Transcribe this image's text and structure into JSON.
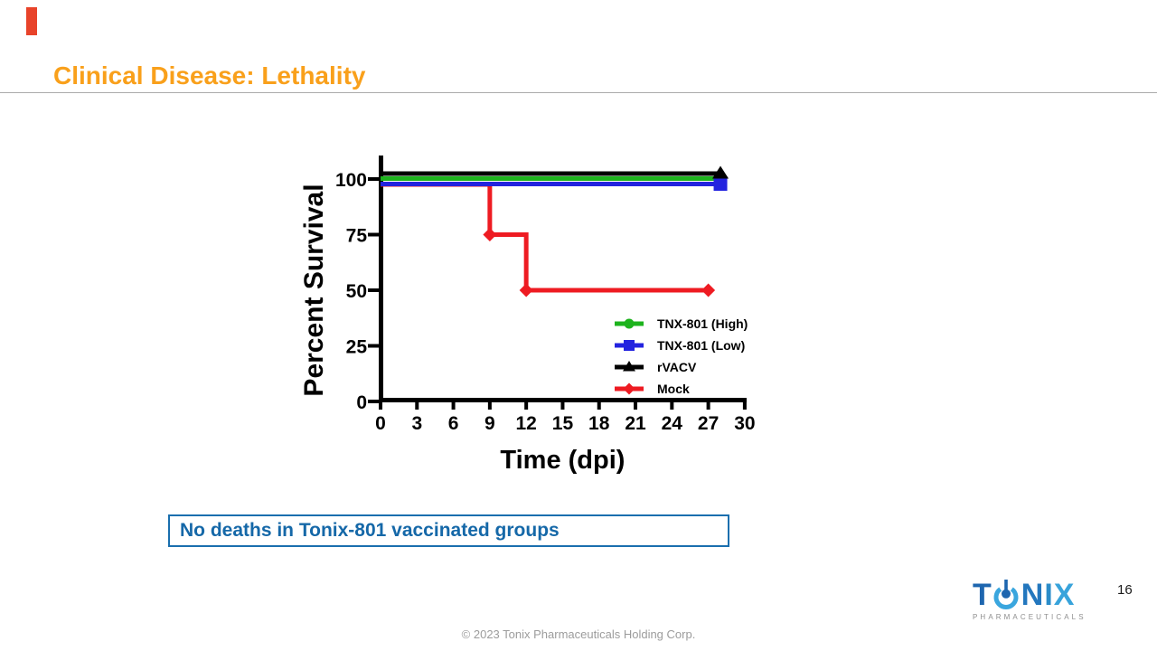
{
  "slide": {
    "title": "Clinical Disease: Lethality",
    "callout": "No deaths in Tonix-801 vaccinated groups",
    "footer": "© 2023 Tonix Pharmaceuticals Holding Corp.",
    "page_number": "16",
    "accent_color": "#f9a01b",
    "callout_color": "#1568a8"
  },
  "logo": {
    "letter_t": "T",
    "letter_n": "N",
    "letter_i": "I",
    "letter_x": "X",
    "o_icon": "power-pin-circle-icon",
    "subtext": "PHARMACEUTICALS"
  },
  "chart_data": {
    "type": "line",
    "subtype": "kaplan-meier-step-survival",
    "title": "",
    "xlabel": "Time (dpi)",
    "ylabel": "Percent Survival",
    "xlim": [
      0,
      30
    ],
    "ylim": [
      0,
      100
    ],
    "x_ticks": [
      0,
      3,
      6,
      9,
      12,
      15,
      18,
      21,
      24,
      27,
      30
    ],
    "y_ticks": [
      0,
      25,
      50,
      75,
      100
    ],
    "grid": false,
    "legend_position": "inside-bottom-right",
    "series": [
      {
        "name": "TNX-801 (High)",
        "color": "#1db31d",
        "marker": "circle",
        "step_points": [
          [
            0,
            100
          ],
          [
            28,
            100
          ]
        ]
      },
      {
        "name": "TNX-801 (Low)",
        "color": "#2323df",
        "marker": "square",
        "step_points": [
          [
            0,
            100
          ],
          [
            28,
            100
          ]
        ]
      },
      {
        "name": "rVACV",
        "color": "#000000",
        "marker": "triangle",
        "step_points": [
          [
            0,
            100
          ],
          [
            28,
            100
          ]
        ]
      },
      {
        "name": "Mock",
        "color": "#ee1b22",
        "marker": "diamond",
        "step_points": [
          [
            0,
            100
          ],
          [
            9,
            100
          ],
          [
            9,
            75
          ],
          [
            12,
            75
          ],
          [
            12,
            50
          ],
          [
            27,
            50
          ]
        ]
      }
    ],
    "note": "The three 100% survivor curves are drawn with small vertical offsets so they remain visible; Mock drops to 75% at day 9 and 50% at day 12."
  }
}
